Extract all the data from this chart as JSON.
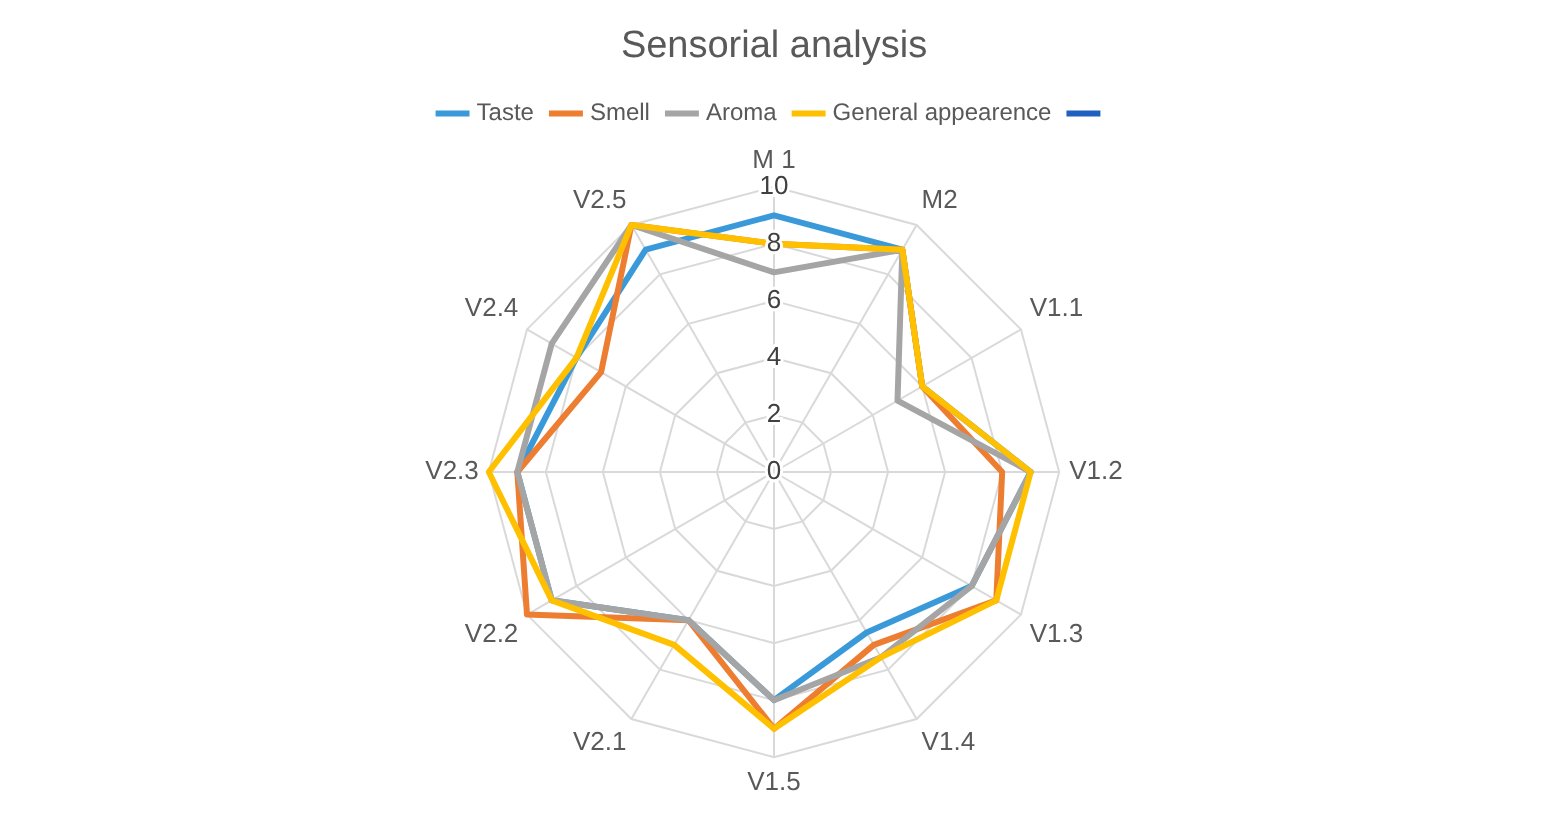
{
  "chart_data": {
    "type": "radar",
    "title": "Sensorial analysis",
    "categories": [
      "M 1",
      "M2",
      "V1.1",
      "V1.2",
      "V1.3",
      "V1.4",
      "V1.5",
      "V2.1",
      "V2.2",
      "V2.3",
      "V2.4",
      "V2.5"
    ],
    "series": [
      {
        "name": "Taste",
        "color": "#3a9ad9",
        "values": [
          9,
          9,
          6,
          9,
          8,
          6.5,
          8,
          6,
          9,
          9,
          8,
          9
        ]
      },
      {
        "name": "Smell",
        "color": "#ed7d31",
        "values": [
          8,
          9,
          6,
          8,
          9,
          7,
          9,
          6,
          10,
          9,
          7,
          10
        ]
      },
      {
        "name": "Aroma",
        "color": "#a5a5a5",
        "values": [
          7,
          9,
          5,
          9,
          8,
          7.5,
          8,
          6,
          9,
          9,
          9,
          10
        ]
      },
      {
        "name": "General appearence",
        "color": "#ffc000",
        "values": [
          8,
          9,
          6,
          9,
          9,
          7.5,
          9,
          7,
          9,
          10,
          8,
          10
        ]
      },
      {
        "color": "#2060c0",
        "values": [
          null,
          null,
          null,
          null,
          null,
          null,
          null,
          null,
          null,
          null,
          null,
          null
        ]
      }
    ],
    "ylim": [
      0,
      10
    ],
    "yticks": [
      0,
      2,
      4,
      6,
      8,
      10
    ],
    "grid": true,
    "legend": "top",
    "marker": "none",
    "line_style": "solid"
  }
}
